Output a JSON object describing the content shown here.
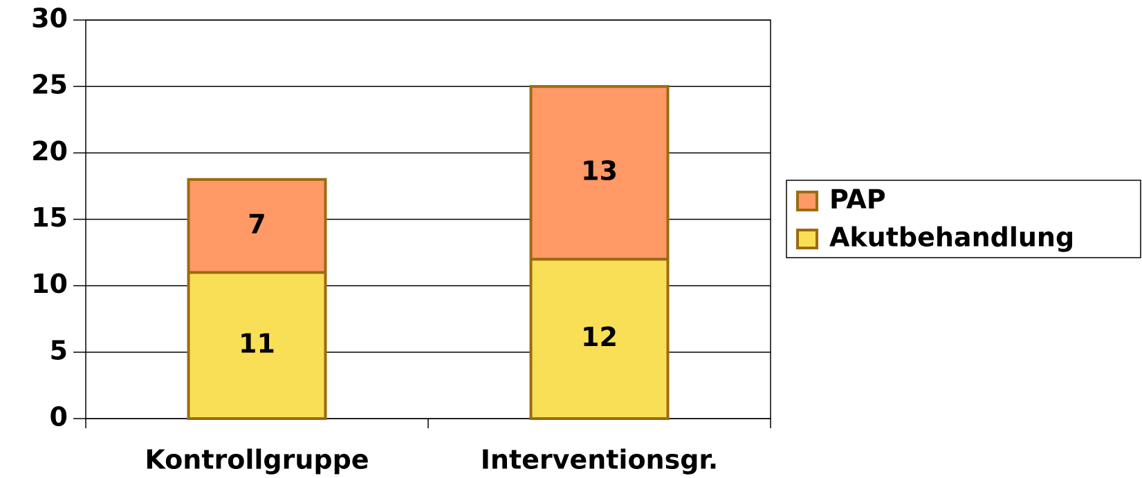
{
  "chart_data": {
    "type": "stacked_bar",
    "categories": [
      "Kontrollgruppe",
      "Interventionsgr."
    ],
    "series": [
      {
        "name": "Akutbehandlung",
        "color": "#f9df55",
        "values": [
          11,
          12
        ]
      },
      {
        "name": "PAP",
        "color": "#ff9966",
        "values": [
          7,
          13
        ]
      }
    ],
    "ylim": [
      0,
      30
    ],
    "yticks": [
      0,
      5,
      10,
      15,
      20,
      25,
      30
    ],
    "grid": true,
    "legend": "right"
  }
}
